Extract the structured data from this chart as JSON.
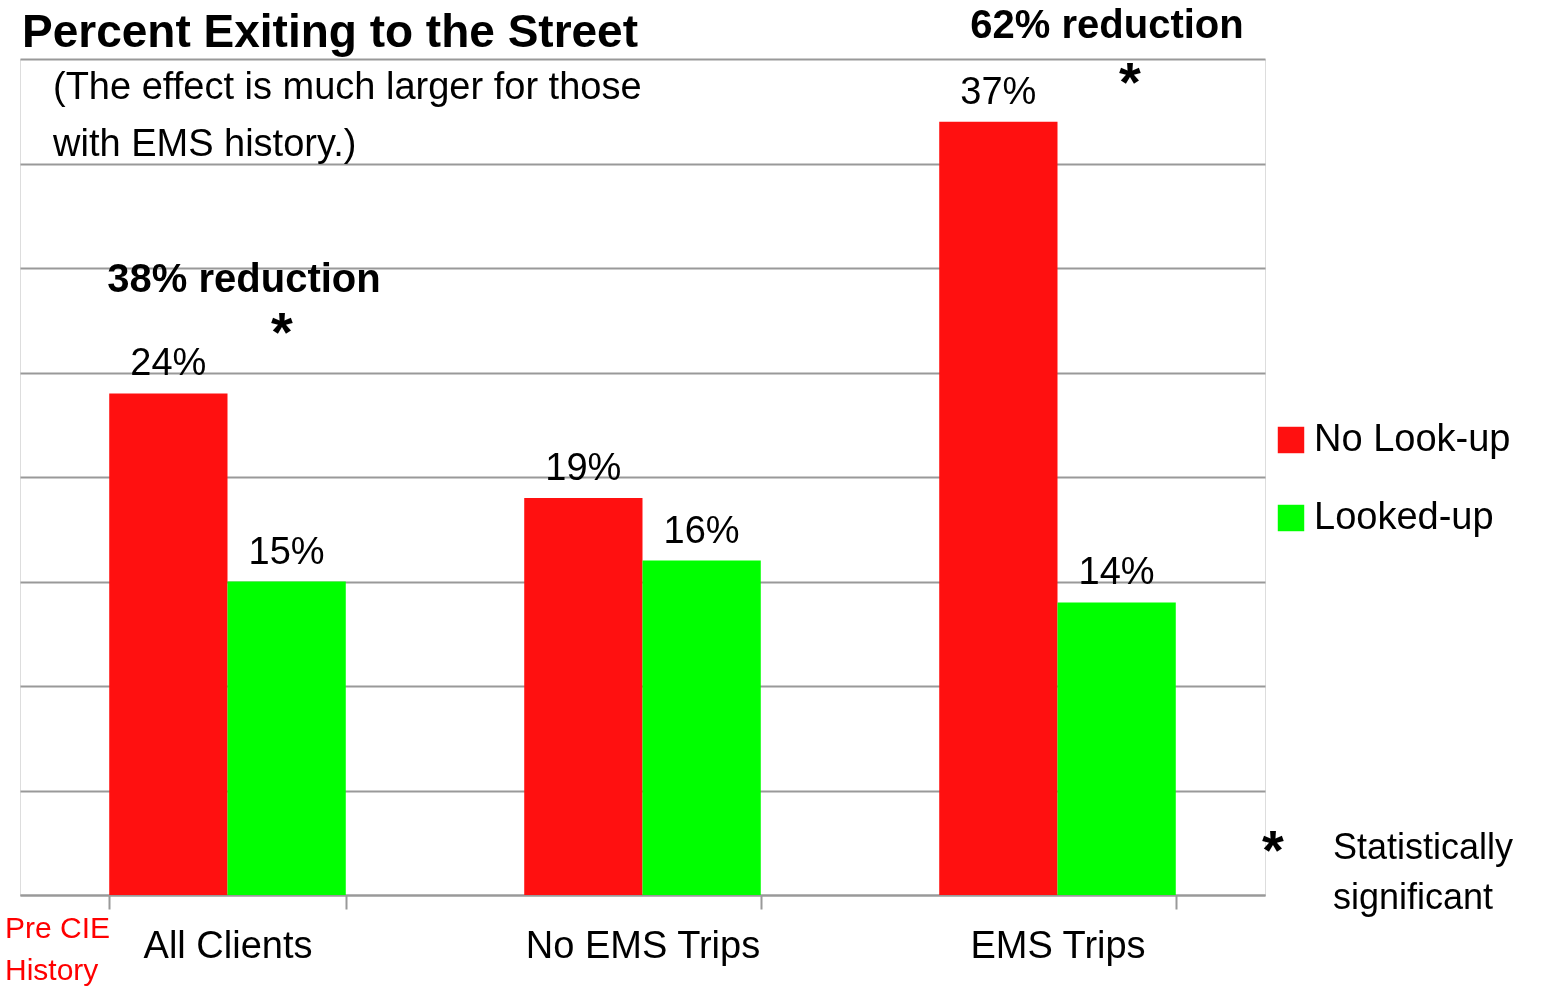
{
  "chart_data": {
    "type": "bar",
    "title": "Percent Exiting to the Street",
    "subtitle": "(The effect is much larger for those\nwith EMS history.)",
    "categories": [
      "All Clients",
      "No EMS Trips",
      "EMS Trips"
    ],
    "series": [
      {
        "name": "No Look-up",
        "color": "#ff1010",
        "values": [
          24,
          19,
          37
        ],
        "value_labels": [
          "24%",
          "19%",
          "37%"
        ]
      },
      {
        "name": "Looked-up",
        "color": "#00ff00",
        "values": [
          15,
          16,
          14
        ],
        "value_labels": [
          "15%",
          "16%",
          "14%"
        ]
      }
    ],
    "ylim": [
      0,
      40
    ],
    "yticks": [
      {
        "value": 0,
        "label": null
      },
      {
        "value": 5,
        "label": null
      },
      {
        "value": 10,
        "label": null
      },
      {
        "value": 15,
        "label": null
      },
      {
        "value": 20,
        "label": null
      },
      {
        "value": 25,
        "label": null
      },
      {
        "value": 30,
        "label": null
      },
      {
        "value": 35,
        "label": null
      },
      {
        "value": 40,
        "label": null
      }
    ],
    "grid": "y",
    "legend": "right",
    "tick_labels": "x",
    "annotations": [
      "38% reduction",
      "*",
      "62% reduction",
      "*",
      "Pre CIE\nHistory",
      "*",
      "Statistically\nsignificant"
    ]
  }
}
